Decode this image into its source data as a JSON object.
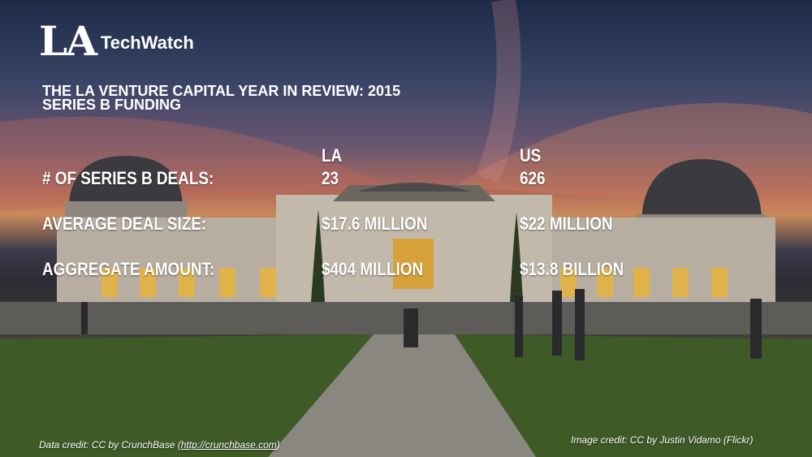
{
  "logo": {
    "la": "LA",
    "techwatch": "TechWatch"
  },
  "title": {
    "line1": "THE LA VENTURE CAPITAL YEAR IN REVIEW: 2015",
    "line2": "SERIES B FUNDING"
  },
  "table": {
    "headers": [
      "LA",
      "US"
    ],
    "rows": [
      {
        "label": "# OF SERIES B DEALS:",
        "la": "23",
        "us": "626"
      },
      {
        "label": "AVERAGE DEAL SIZE:",
        "la": "$17.6 MILLION",
        "us": "$22 MILLION"
      },
      {
        "label": "AGGREGATE AMOUNT:",
        "la": "$404 MILLION",
        "us": "$13.8 BILLION"
      }
    ]
  },
  "credits": {
    "data_prefix": "Data credit: CC by CrunchBase (",
    "data_link": "http://crunchbase.com",
    "data_suffix": ")",
    "image": "Image credit: CC by Justin Vidamo (Flickr)"
  }
}
